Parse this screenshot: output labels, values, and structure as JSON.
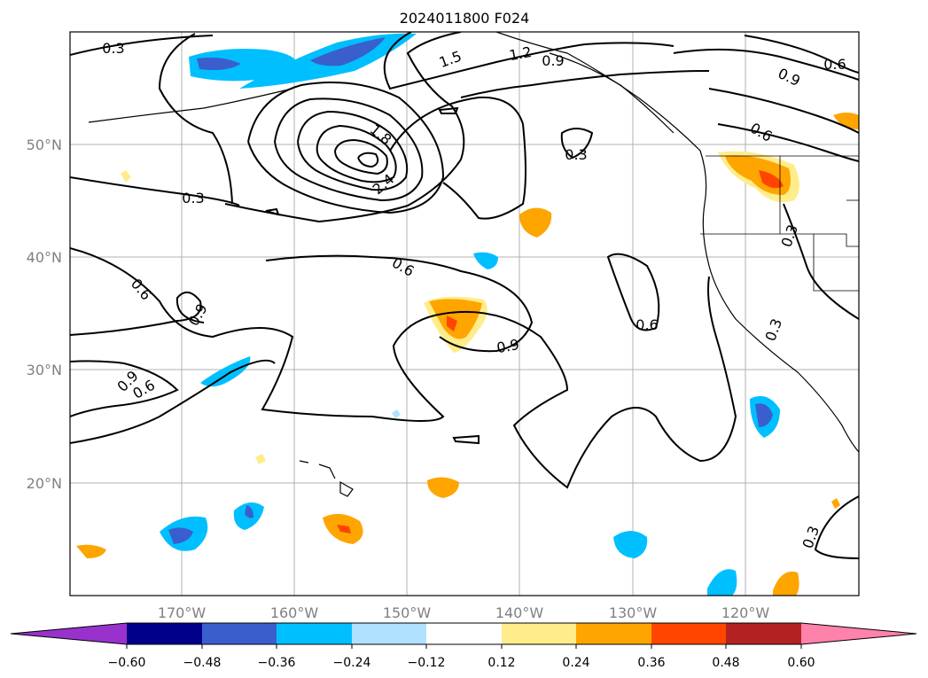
{
  "title": "2024011800 F024",
  "lat_labels": [
    "50°N",
    "40°N",
    "30°N",
    "20°N"
  ],
  "lon_labels": [
    "170°W",
    "160°W",
    "150°W",
    "140°W",
    "130°W",
    "120°W"
  ],
  "colorbar": {
    "ticks": [
      "−0.60",
      "−0.48",
      "−0.36",
      "−0.24",
      "−0.12",
      "0.12",
      "0.24",
      "0.36",
      "0.48",
      "0.60"
    ],
    "colors": [
      "#9932cc",
      "#00008b",
      "#3a5fcd",
      "#00bfff",
      "#b0e2ff",
      "#ffffff",
      "#ffec8b",
      "#ffa500",
      "#ff4500",
      "#b22222",
      "#ff82ab"
    ]
  },
  "contour_labels": [
    "0.3",
    "0.3",
    "0.3",
    "0.3",
    "0.3",
    "0.3",
    "0.6",
    "0.6",
    "0.6",
    "0.6",
    "0.6",
    "0.6",
    "0.9",
    "0.9",
    "0.9",
    "0.9",
    "0.9",
    "1.2",
    "1.5",
    "1.8",
    "2.4"
  ]
}
